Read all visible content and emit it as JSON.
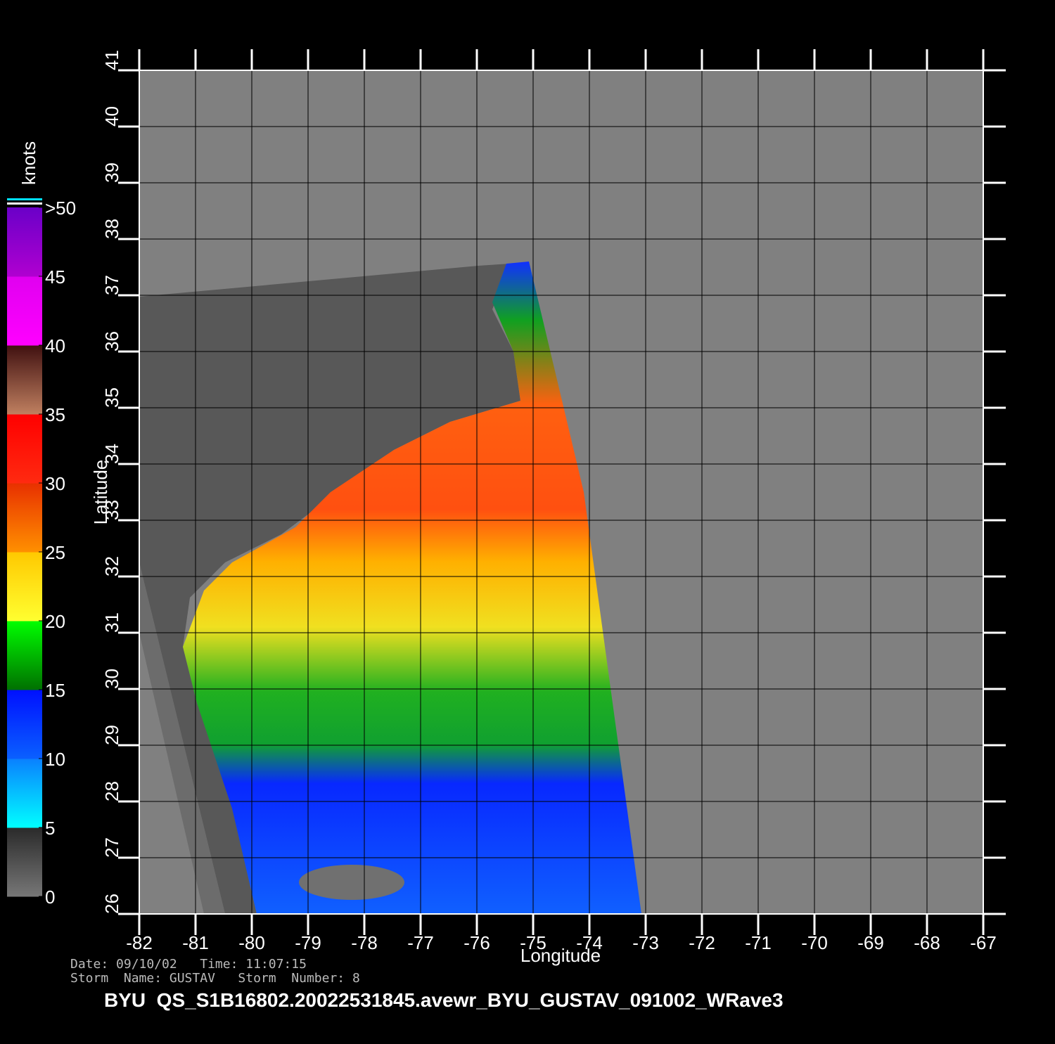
{
  "map": {
    "x_label": "Longitude",
    "y_label": "Latitude",
    "xlim": [
      -82,
      -67
    ],
    "ylim": [
      26,
      41
    ],
    "xticks": [
      -82,
      -81,
      -80,
      -79,
      -78,
      -77,
      -76,
      -75,
      -74,
      -73,
      -72,
      -71,
      -70,
      -69,
      -68,
      -67
    ],
    "yticks": [
      26,
      27,
      28,
      29,
      30,
      31,
      32,
      33,
      34,
      35,
      36,
      37,
      38,
      39,
      40,
      41
    ],
    "colorbar": {
      "unit": "knots",
      "lim": [
        0,
        50
      ],
      "ticks": [
        0,
        5,
        10,
        15,
        20,
        25,
        30,
        35,
        40,
        45,
        {
          "value": 50,
          "label": ">50"
        }
      ],
      "colors": [
        [
          "#777777",
          "#2a2a2a"
        ],
        [
          "#00ffff",
          "#0a80ff"
        ],
        [
          "#0a60ff",
          "#0010ff"
        ],
        [
          "#007000",
          "#00ff00"
        ],
        [
          "#ffff30",
          "#ffc800"
        ],
        [
          "#ff9000",
          "#e83000"
        ],
        [
          "#ff2a10",
          "#ff0000"
        ],
        [
          "#c08060",
          "#401010"
        ],
        [
          "#ff00ff",
          "#e000f0"
        ],
        [
          "#b000d0",
          "#6a00c8"
        ]
      ]
    },
    "info": {
      "date_line": "Date: 09/10/02   Time: 11:07:15",
      "storm_line": "Storm  Name: GUSTAV   Storm  Number: 8",
      "file_name": "BYU  QS_S1B16802.20022531845.avewr_BYU_GUSTAV_091002_WRave3"
    }
  }
}
